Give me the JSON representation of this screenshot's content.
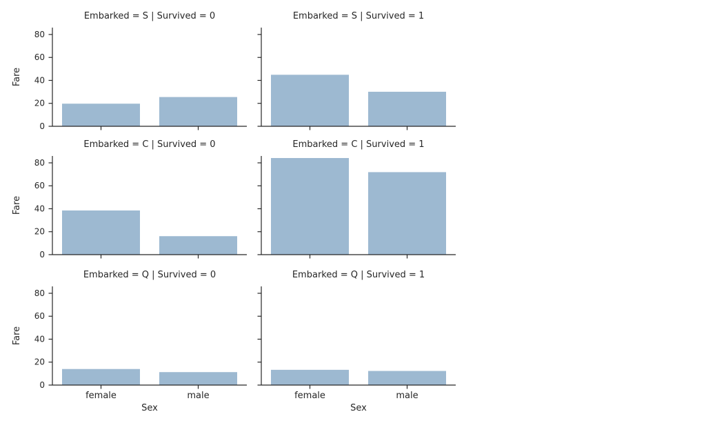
{
  "figure": {
    "background_color": "#ffffff",
    "bar_fill_color": "#9db9d1",
    "axis_line_color": "#262626",
    "text_color": "#262626"
  },
  "chart_data": {
    "type": "bar",
    "grid": false,
    "legend": "none",
    "categories": [
      "female",
      "male"
    ],
    "xlabel": "Sex",
    "ylabel": "Fare",
    "ytick_labels": [
      "0",
      "20",
      "40",
      "60",
      "80"
    ],
    "yticks": [
      0,
      20,
      40,
      60,
      80
    ],
    "ylim": [
      0,
      86
    ],
    "facet_row_variable": "Embarked",
    "facet_row_values": [
      "S",
      "C",
      "Q"
    ],
    "facet_col_variable": "Survived",
    "facet_col_values": [
      "0",
      "1"
    ],
    "facets": [
      {
        "title": "Embarked = S | Survived = 0",
        "row": 0,
        "col": 0,
        "values": [
          19.7,
          25.5
        ]
      },
      {
        "title": "Embarked = S | Survived = 1",
        "row": 0,
        "col": 1,
        "values": [
          44.9,
          30.1
        ]
      },
      {
        "title": "Embarked = C | Survived = 0",
        "row": 1,
        "col": 0,
        "values": [
          38.5,
          16.1
        ]
      },
      {
        "title": "Embarked = C | Survived = 1",
        "row": 1,
        "col": 1,
        "values": [
          84.2,
          71.9
        ]
      },
      {
        "title": "Embarked = Q | Survived = 0",
        "row": 2,
        "col": 0,
        "values": [
          14.0,
          11.3
        ]
      },
      {
        "title": "Embarked = Q | Survived = 1",
        "row": 2,
        "col": 1,
        "values": [
          13.3,
          12.3
        ]
      }
    ]
  }
}
